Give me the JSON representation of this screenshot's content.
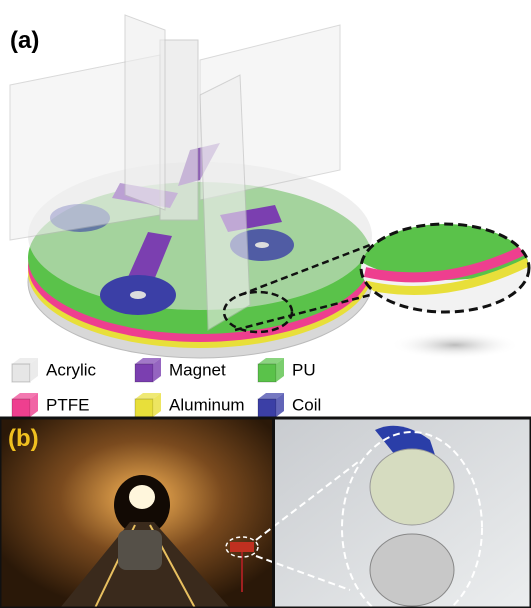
{
  "panels": [
    {
      "label": "(a)"
    },
    {
      "label": "(b)"
    }
  ],
  "legend": [
    {
      "name": "Acrylic",
      "color": "#e6e6e6"
    },
    {
      "name": "Magnet",
      "color": "#7b3fb0"
    },
    {
      "name": "PU",
      "color": "#5ac24a"
    },
    {
      "name": "PTFE",
      "color": "#ee3f8f"
    },
    {
      "name": "Aluminum",
      "color": "#e8df3a"
    },
    {
      "name": "Coil",
      "color": "#3b3fa6"
    }
  ]
}
